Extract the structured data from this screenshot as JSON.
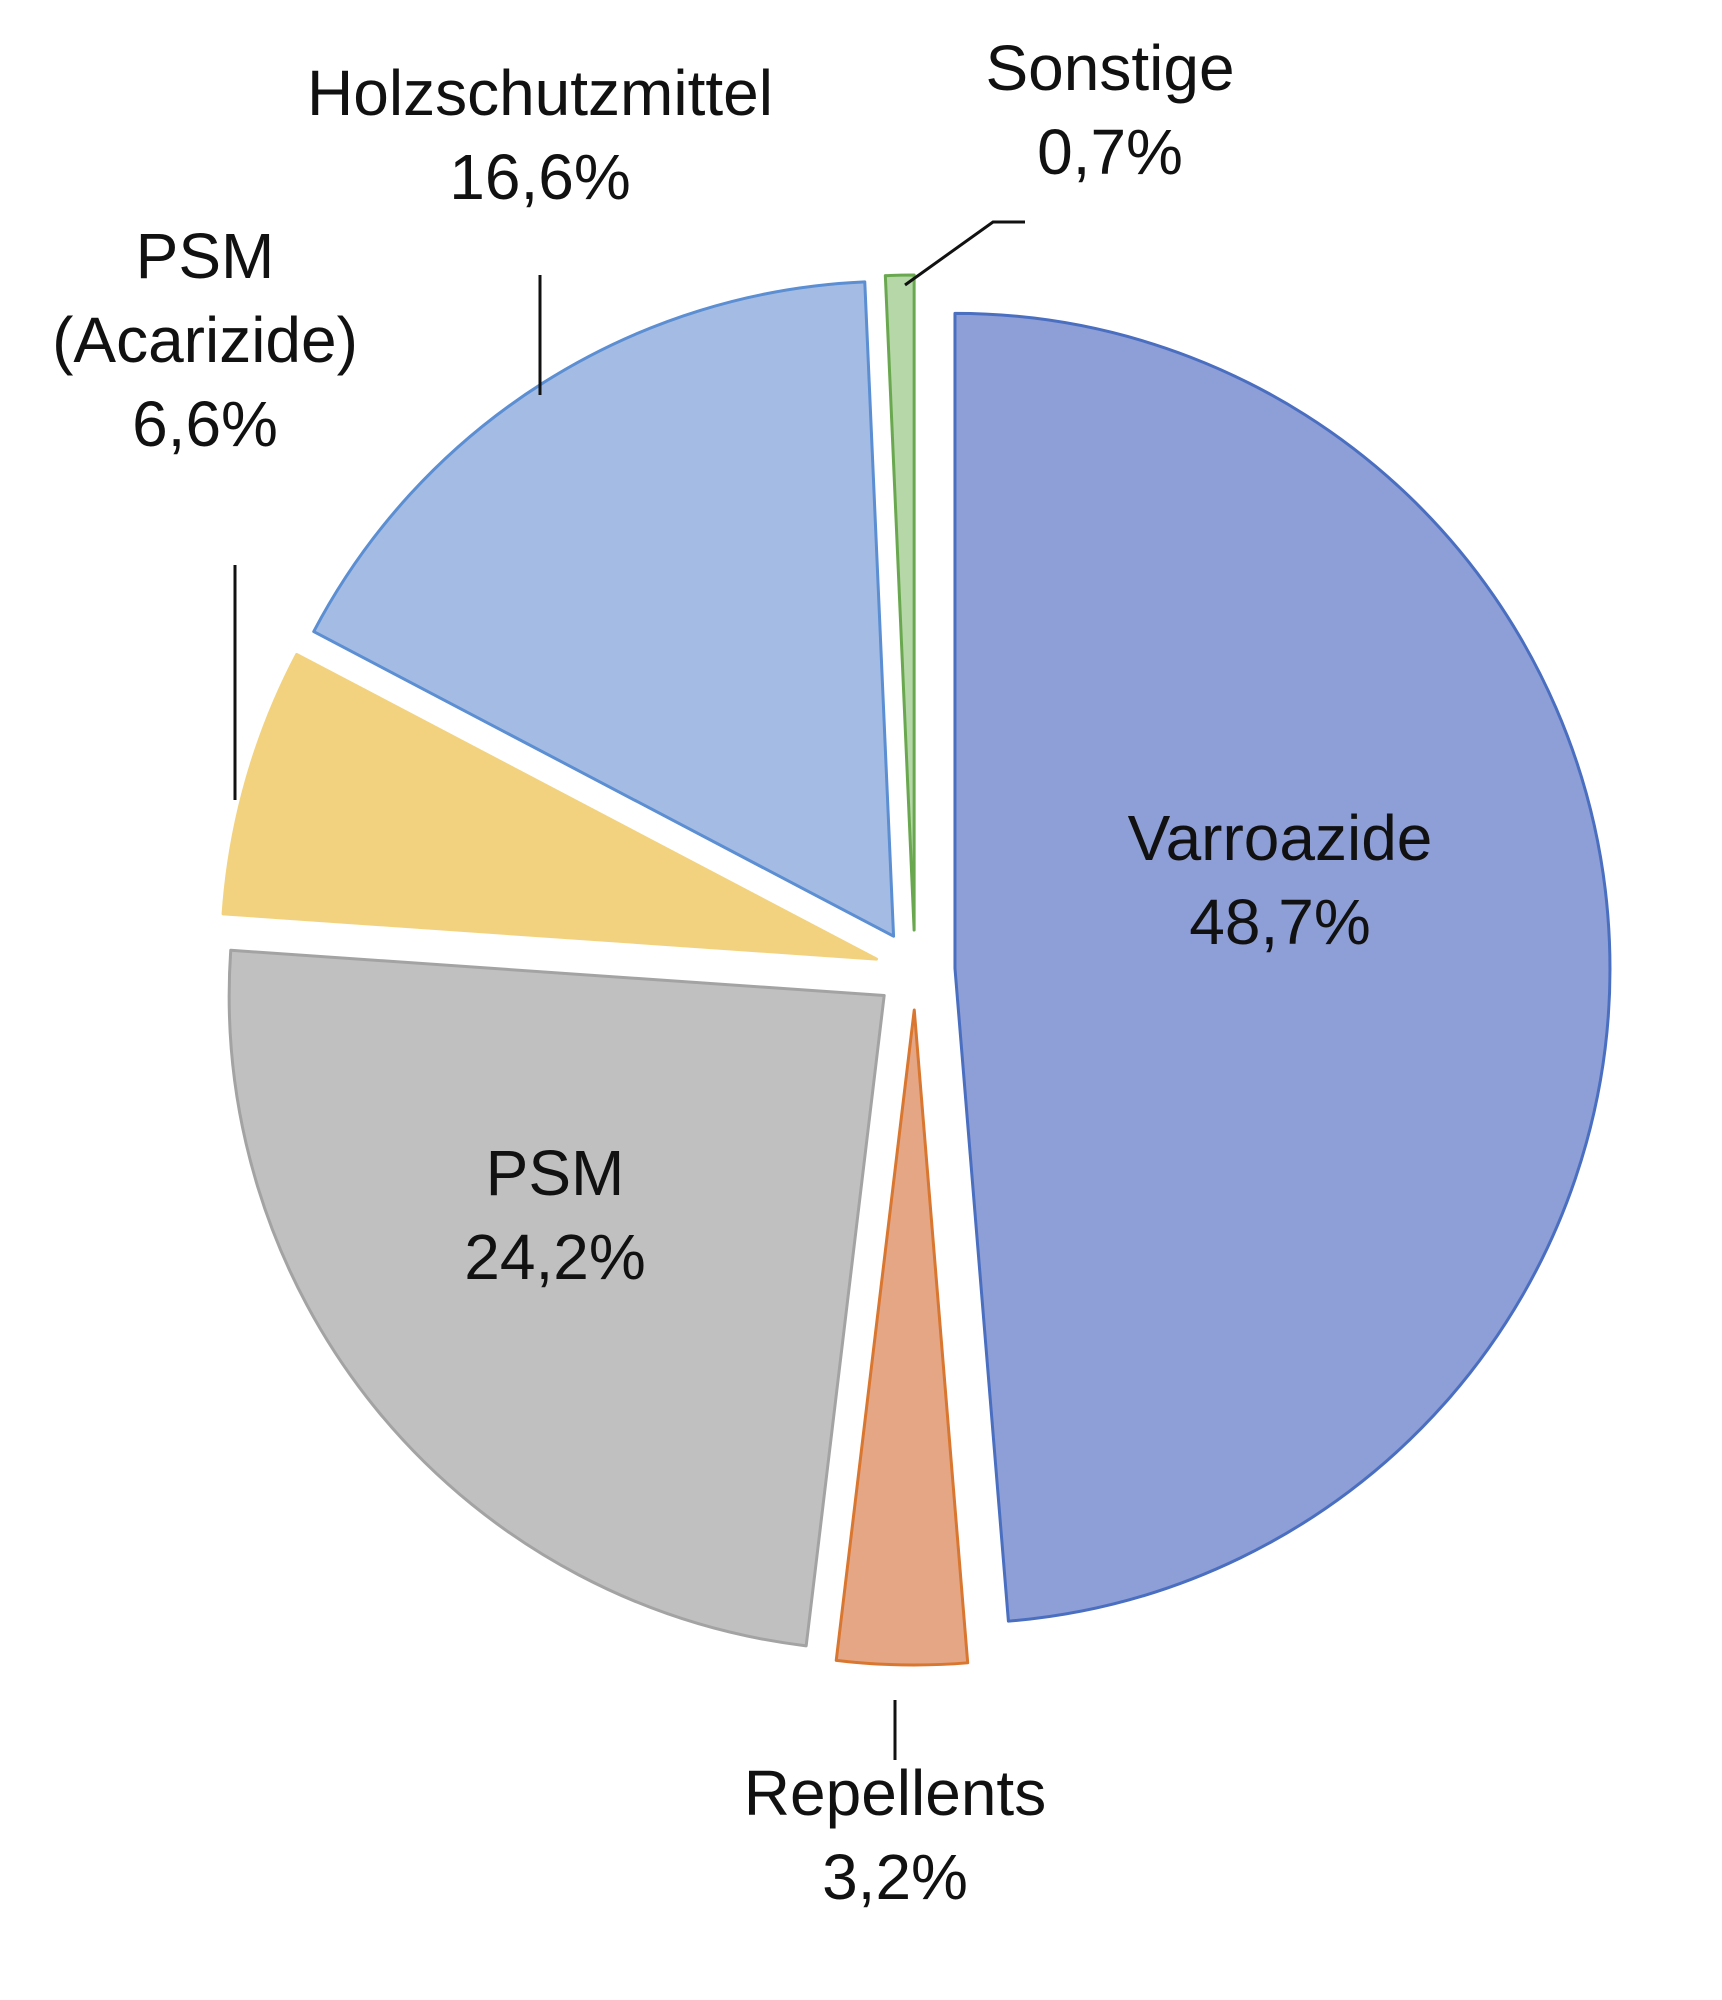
{
  "chart_data": {
    "type": "pie",
    "slices": [
      {
        "name": "Varroazide",
        "value": 48.7,
        "value_label": "48,7%",
        "fill": "#8E9ED6",
        "stroke": "#4A6EC0",
        "exploded": true,
        "label_lines": [
          "Varroazide",
          "48,7%"
        ]
      },
      {
        "name": "Repellents",
        "value": 3.2,
        "value_label": "3,2%",
        "fill": "#E5A686",
        "stroke": "#D9762F",
        "exploded": true,
        "label_lines": [
          "Repellents",
          "3,2%"
        ]
      },
      {
        "name": "PSM",
        "value": 24.2,
        "value_label": "24,2%",
        "fill": "#C0C0C0",
        "stroke": "#A3A3A3",
        "exploded": true,
        "label_lines": [
          "PSM",
          "24,2%"
        ]
      },
      {
        "name": "PSM (Acarizide)",
        "value": 6.6,
        "value_label": "6,6%",
        "fill": "#F2D27E",
        "stroke": "#F2D27E",
        "exploded": true,
        "label_lines": [
          "PSM",
          "(Acarizide)",
          "6,6%"
        ]
      },
      {
        "name": "Holzschutzmittel",
        "value": 16.6,
        "value_label": "16,6%",
        "fill": "#A4BCE3",
        "stroke": "#5B8ED2",
        "exploded": true,
        "label_lines": [
          "Holzschutzmittel",
          "16,6%"
        ]
      },
      {
        "name": "Sonstige",
        "value": 0.7,
        "value_label": "0,7%",
        "fill": "#B6D7A8",
        "stroke": "#6AA84F",
        "exploded": true,
        "label_lines": [
          "Sonstige",
          "0,7%"
        ]
      }
    ],
    "start_at": "12 o'clock",
    "direction": "clockwise",
    "legend": "none"
  }
}
